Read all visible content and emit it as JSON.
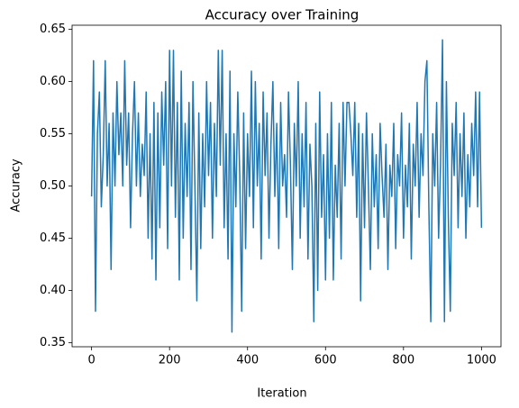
{
  "chart_data": {
    "type": "line",
    "title": "Accuracy over Training",
    "x_label": "Iteration",
    "y_label": "Accuracy",
    "x": [
      0,
      5,
      10,
      15,
      20,
      25,
      30,
      35,
      40,
      45,
      50,
      55,
      60,
      65,
      70,
      75,
      80,
      85,
      90,
      95,
      100,
      105,
      110,
      115,
      120,
      125,
      130,
      135,
      140,
      145,
      150,
      155,
      160,
      165,
      170,
      175,
      180,
      185,
      190,
      195,
      200,
      205,
      210,
      215,
      220,
      225,
      230,
      235,
      240,
      245,
      250,
      255,
      260,
      265,
      270,
      275,
      280,
      285,
      290,
      295,
      300,
      305,
      310,
      315,
      320,
      325,
      330,
      335,
      340,
      345,
      350,
      355,
      360,
      365,
      370,
      375,
      380,
      385,
      390,
      395,
      400,
      405,
      410,
      415,
      420,
      425,
      430,
      435,
      440,
      445,
      450,
      455,
      460,
      465,
      470,
      475,
      480,
      485,
      490,
      495,
      500,
      505,
      510,
      515,
      520,
      525,
      530,
      535,
      540,
      545,
      550,
      555,
      560,
      565,
      570,
      575,
      580,
      585,
      590,
      595,
      600,
      605,
      610,
      615,
      620,
      625,
      630,
      635,
      640,
      645,
      650,
      655,
      660,
      665,
      670,
      675,
      680,
      685,
      690,
      695,
      700,
      705,
      710,
      715,
      720,
      725,
      730,
      735,
      740,
      745,
      750,
      755,
      760,
      765,
      770,
      775,
      780,
      785,
      790,
      795,
      800,
      805,
      810,
      815,
      820,
      825,
      830,
      835,
      840,
      845,
      850,
      855,
      860,
      865,
      870,
      875,
      880,
      885,
      890,
      895,
      900,
      905,
      910,
      915,
      920,
      925,
      930,
      935,
      940,
      945,
      950,
      955,
      960,
      965,
      970,
      975,
      980,
      985,
      990,
      995,
      1000
    ],
    "values": [
      0.49,
      0.62,
      0.38,
      0.55,
      0.59,
      0.48,
      0.53,
      0.62,
      0.5,
      0.56,
      0.42,
      0.57,
      0.5,
      0.6,
      0.53,
      0.57,
      0.5,
      0.62,
      0.52,
      0.57,
      0.46,
      0.55,
      0.6,
      0.5,
      0.57,
      0.49,
      0.54,
      0.51,
      0.59,
      0.45,
      0.55,
      0.43,
      0.58,
      0.41,
      0.57,
      0.46,
      0.59,
      0.52,
      0.6,
      0.44,
      0.63,
      0.5,
      0.63,
      0.47,
      0.58,
      0.41,
      0.61,
      0.45,
      0.56,
      0.49,
      0.58,
      0.42,
      0.6,
      0.5,
      0.39,
      0.57,
      0.44,
      0.55,
      0.48,
      0.6,
      0.51,
      0.58,
      0.45,
      0.56,
      0.49,
      0.63,
      0.52,
      0.63,
      0.46,
      0.55,
      0.43,
      0.61,
      0.36,
      0.55,
      0.48,
      0.59,
      0.51,
      0.38,
      0.57,
      0.44,
      0.55,
      0.49,
      0.61,
      0.46,
      0.6,
      0.5,
      0.56,
      0.43,
      0.59,
      0.51,
      0.57,
      0.45,
      0.54,
      0.6,
      0.49,
      0.56,
      0.44,
      0.58,
      0.5,
      0.53,
      0.47,
      0.59,
      0.52,
      0.42,
      0.56,
      0.5,
      0.6,
      0.45,
      0.55,
      0.48,
      0.58,
      0.43,
      0.54,
      0.5,
      0.37,
      0.56,
      0.4,
      0.59,
      0.47,
      0.53,
      0.41,
      0.55,
      0.45,
      0.58,
      0.41,
      0.52,
      0.47,
      0.56,
      0.43,
      0.58,
      0.5,
      0.58,
      0.58,
      0.55,
      0.51,
      0.58,
      0.47,
      0.56,
      0.39,
      0.55,
      0.46,
      0.57,
      0.5,
      0.42,
      0.55,
      0.48,
      0.53,
      0.44,
      0.56,
      0.51,
      0.47,
      0.54,
      0.42,
      0.52,
      0.49,
      0.56,
      0.44,
      0.53,
      0.5,
      0.57,
      0.45,
      0.52,
      0.48,
      0.56,
      0.43,
      0.54,
      0.5,
      0.58,
      0.47,
      0.55,
      0.51,
      0.6,
      0.62,
      0.48,
      0.37,
      0.55,
      0.5,
      0.58,
      0.45,
      0.52,
      0.64,
      0.37,
      0.6,
      0.47,
      0.38,
      0.56,
      0.51,
      0.58,
      0.46,
      0.55,
      0.49,
      0.57,
      0.45,
      0.53,
      0.48,
      0.56,
      0.51,
      0.59,
      0.48,
      0.59,
      0.46
    ],
    "color": "#1f77b4",
    "xlim": [
      -50,
      1050
    ],
    "xticks": [
      0,
      200,
      400,
      600,
      800,
      1000
    ],
    "ylim": [
      0.346,
      0.654
    ],
    "yticks": [
      0.35,
      {
        "value": 0.4,
        "label": "0.40"
      },
      0.45,
      {
        "value": 0.5,
        "label": "0.50"
      },
      0.55,
      {
        "value": 0.6,
        "label": "0.60"
      },
      0.65
    ],
    "grid": false
  }
}
